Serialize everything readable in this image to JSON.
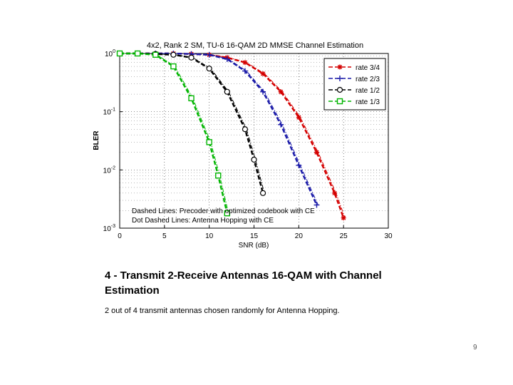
{
  "chart_data": {
    "type": "line",
    "title": "4x2, Rank 2 SM, TU-6 16-QAM 2D MMSE Channel Estimation",
    "xlabel": "SNR (dB)",
    "ylabel": "BLER",
    "xlim": [
      0,
      30
    ],
    "ylim": [
      0.001,
      1
    ],
    "yscale": "log",
    "grid": true,
    "xticks": [
      "0",
      "5",
      "10",
      "15",
      "20",
      "25",
      "30"
    ],
    "yticks": [
      "10-3",
      "10-2",
      "10-1",
      "100"
    ],
    "legend_position": "top-right",
    "series": [
      {
        "name": "rate 3/4",
        "color": "#d40000",
        "marker": "star",
        "x": [
          0,
          2,
          4,
          6,
          8,
          10,
          12,
          14,
          16,
          18,
          20,
          22,
          24,
          25
        ],
        "y": [
          1,
          1,
          1,
          1,
          0.98,
          0.95,
          0.85,
          0.7,
          0.45,
          0.22,
          0.08,
          0.02,
          0.004,
          0.0015
        ]
      },
      {
        "name": "rate 2/3",
        "color": "#1a1aa8",
        "marker": "plus",
        "x": [
          0,
          2,
          4,
          6,
          8,
          10,
          12,
          14,
          16,
          18,
          20,
          22
        ],
        "y": [
          1,
          1,
          1,
          1,
          0.98,
          0.95,
          0.8,
          0.5,
          0.22,
          0.06,
          0.012,
          0.0025
        ]
      },
      {
        "name": "rate 1/2",
        "color": "#000000",
        "marker": "circle",
        "x": [
          0,
          2,
          4,
          6,
          8,
          10,
          12,
          14,
          15,
          16
        ],
        "y": [
          1,
          1,
          0.98,
          0.95,
          0.85,
          0.55,
          0.22,
          0.05,
          0.015,
          0.004
        ]
      },
      {
        "name": "rate 1/3",
        "color": "#00b400",
        "marker": "square",
        "x": [
          0,
          2,
          4,
          6,
          8,
          10,
          11,
          12
        ],
        "y": [
          1,
          1,
          0.95,
          0.6,
          0.17,
          0.03,
          0.008,
          0.0018
        ]
      }
    ],
    "annotations": [
      "Dashed Lines: Precoder with optimized codebook with CE",
      "Dot Dashed Lines: Antenna Hopping with CE"
    ]
  },
  "caption": {
    "title": "4 - Transmit 2-Receive Antennas 16-QAM with Channel Estimation",
    "note": "2 out of 4 transmit antennas chosen randomly for Antenna Hopping."
  },
  "page_number": "9"
}
